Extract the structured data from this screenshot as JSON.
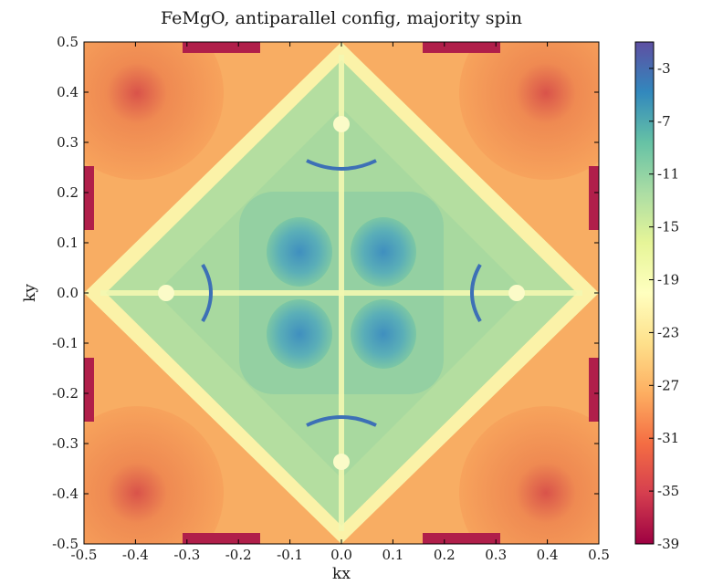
{
  "chart_data": {
    "type": "heatmap",
    "title": "FeMgO, antiparallel config, majority spin",
    "xlabel": "kx",
    "ylabel": "ky",
    "xlim": [
      -0.5,
      0.5
    ],
    "ylim": [
      -0.5,
      0.5
    ],
    "x_ticks": [
      "-0.5",
      "-0.4",
      "-0.3",
      "-0.2",
      "-0.1",
      "0.0",
      "0.1",
      "0.2",
      "0.3",
      "0.4",
      "0.5"
    ],
    "y_ticks": [
      "0.5",
      "0.4",
      "0.3",
      "0.2",
      "0.1",
      "0.0",
      "-0.1",
      "-0.2",
      "-0.3",
      "-0.4",
      "-0.5"
    ],
    "colorbar": {
      "range": [
        -39,
        -1
      ],
      "colormap": "Spectral",
      "ticks": [
        "-3",
        "-7",
        "-11",
        "-15",
        "-19",
        "-23",
        "-27",
        "-31",
        "-35",
        "-39"
      ]
    },
    "grid": false
  },
  "colors": {
    "axis": "#000000",
    "text": "#1a1a1a"
  }
}
